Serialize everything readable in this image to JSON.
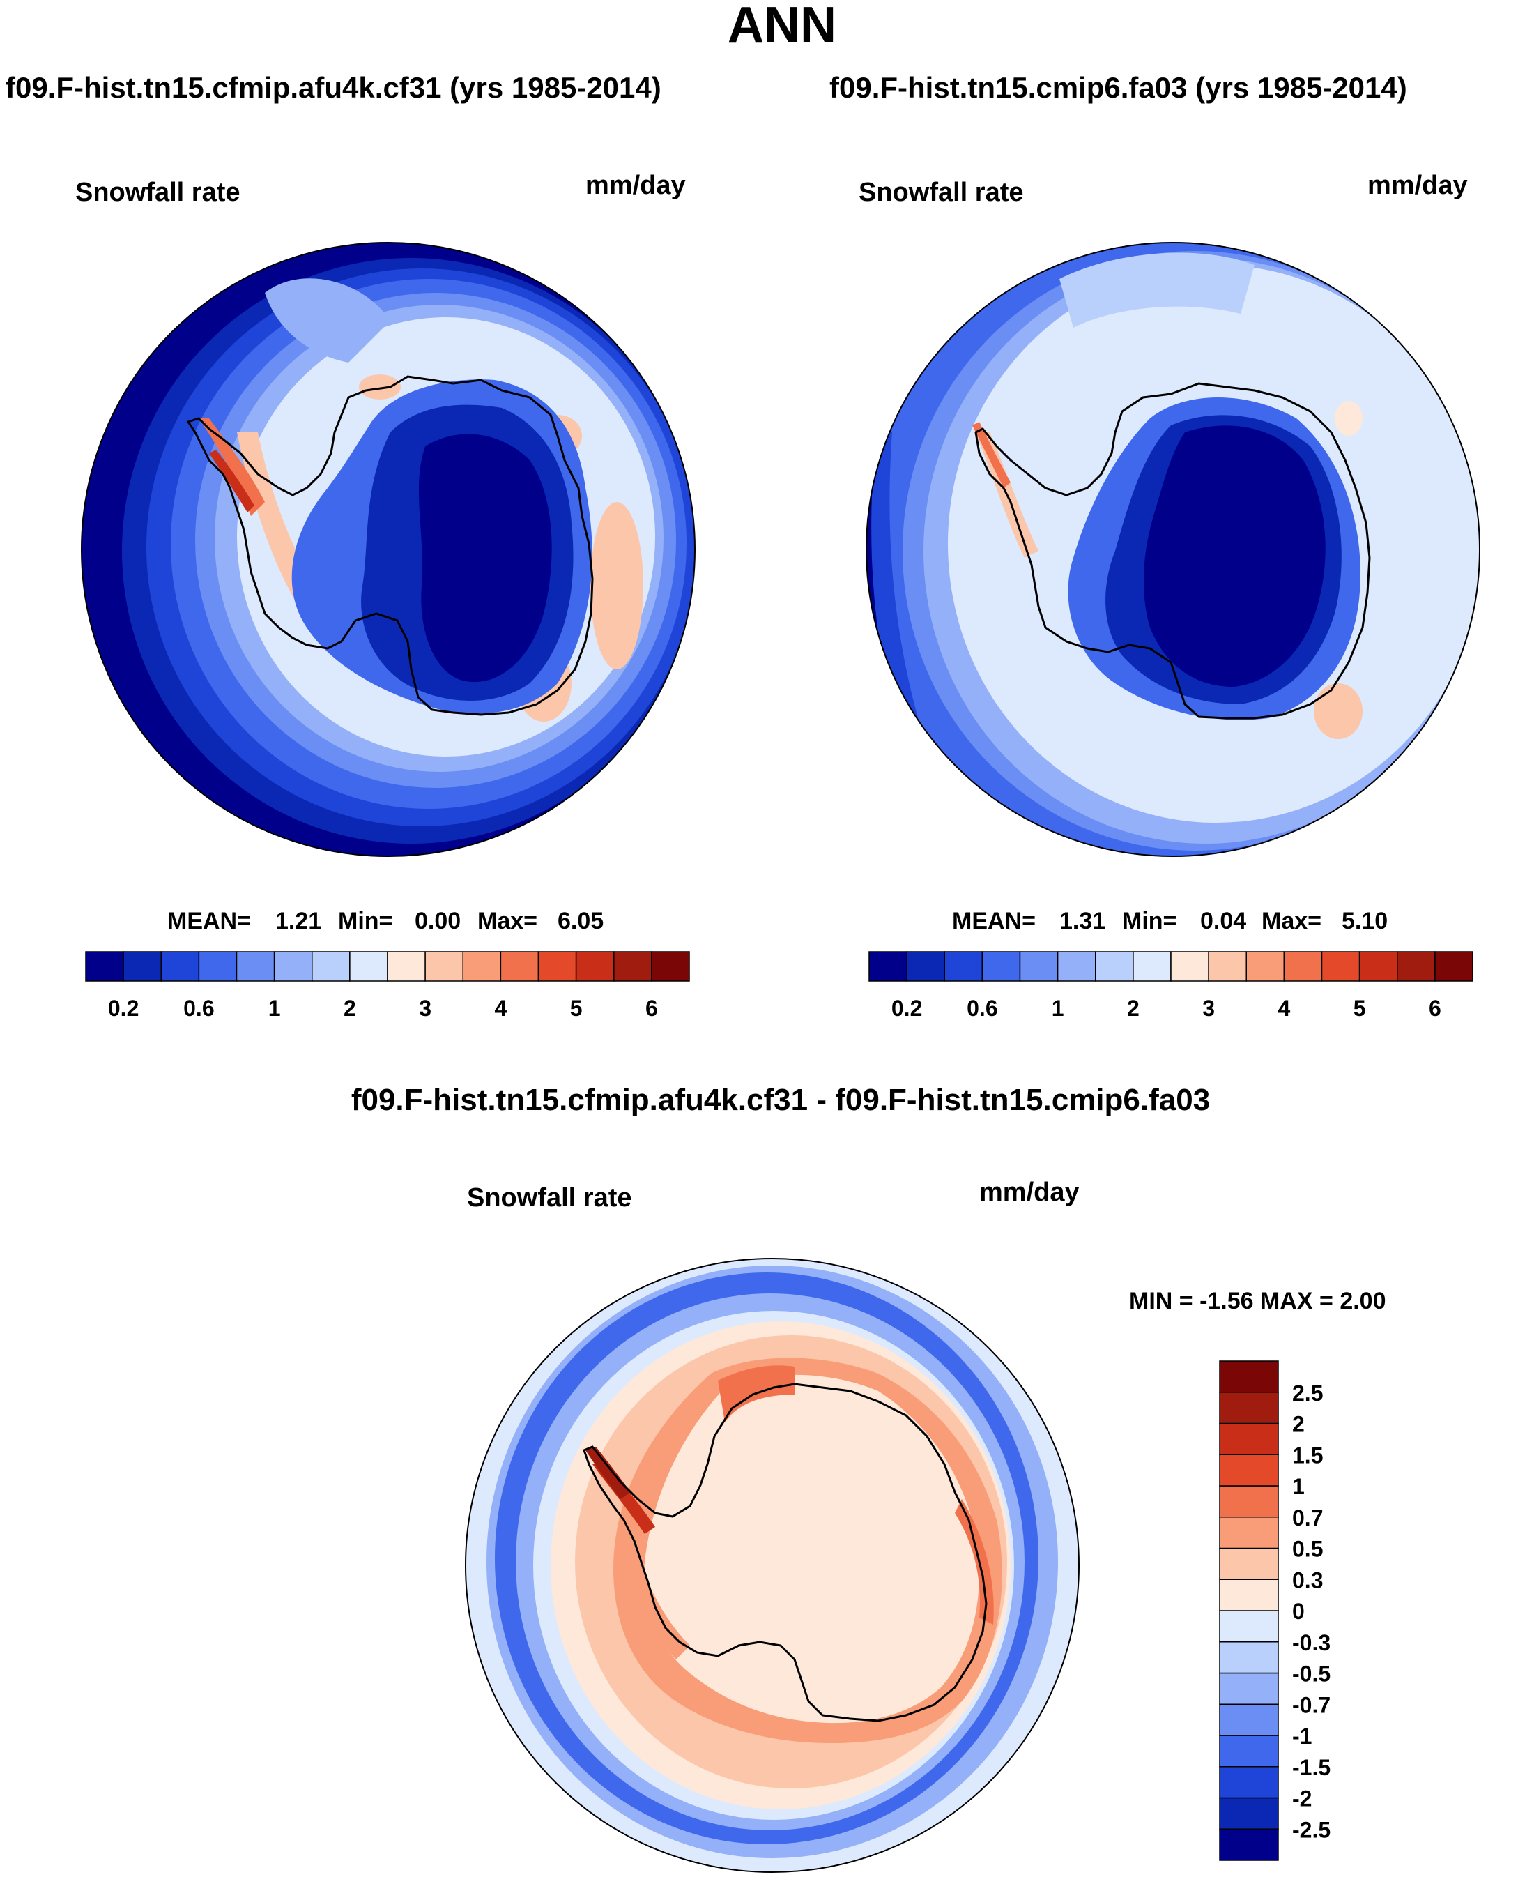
{
  "page": {
    "title": "ANN"
  },
  "panels": [
    {
      "case_title": "f09.F-hist.tn15.cfmip.afu4k.cf31 (yrs 1985-2014)",
      "variable": "Snowfall rate",
      "units": "mm/day",
      "stats": {
        "mean_label": "MEAN=",
        "mean": "1.21",
        "min_label": "Min=",
        "min": "0.00",
        "max_label": "Max=",
        "max": "6.05"
      },
      "style": "left"
    },
    {
      "case_title": "f09.F-hist.tn15.cmip6.fa03 (yrs 1985-2014)",
      "variable": "Snowfall rate",
      "units": "mm/day",
      "stats": {
        "mean_label": "MEAN=",
        "mean": "1.31",
        "min_label": "Min=",
        "min": "0.04",
        "max_label": "Max=",
        "max": "5.10"
      },
      "style": "right"
    }
  ],
  "diff_panel": {
    "case_title": "f09.F-hist.tn15.cfmip.afu4k.cf31 - f09.F-hist.tn15.cmip6.fa03",
    "variable": "Snowfall rate",
    "units": "mm/day",
    "stats_text": "MIN =  -1.56 MAX =   2.00"
  },
  "colorbar_abs": {
    "colors": [
      "#00008b",
      "#0a28b4",
      "#1f45d8",
      "#3f68ec",
      "#6a8ef4",
      "#93b0f8",
      "#b9cffc",
      "#ddeafd",
      "#fde8da",
      "#fcc6aa",
      "#f89d77",
      "#f2714d",
      "#e4492a",
      "#c82e18",
      "#a01c0e",
      "#7a0606"
    ],
    "tick_labels": [
      "0.2",
      "0.6",
      "1",
      "2",
      "3",
      "4",
      "5",
      "6"
    ],
    "tick_after_box": [
      1,
      3,
      5,
      7,
      9,
      11,
      13,
      15
    ]
  },
  "colorbar_diff": {
    "colors": [
      "#00008b",
      "#0a28b4",
      "#1f45d8",
      "#3f68ec",
      "#6a8ef4",
      "#93b0f8",
      "#b9cffc",
      "#ddeafd",
      "#fde8da",
      "#fcc6aa",
      "#f89d77",
      "#f2714d",
      "#e4492a",
      "#c82e18",
      "#a01c0e",
      "#7a0606"
    ],
    "tick_labels": [
      "-2.5",
      "-2",
      "-1.5",
      "-1",
      "-0.7",
      "-0.5",
      "-0.3",
      "0",
      "0.3",
      "0.5",
      "0.7",
      "1",
      "1.5",
      "2",
      "2.5"
    ]
  }
}
